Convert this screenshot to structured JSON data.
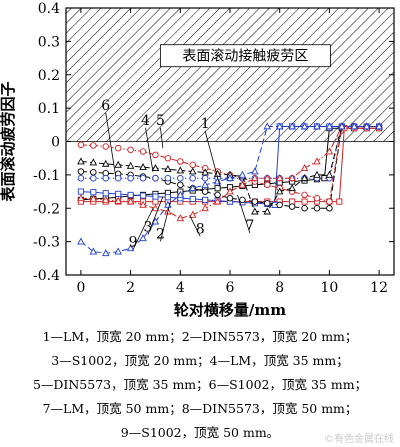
{
  "chart_data": {
    "type": "line",
    "xlabel": "轮对横移量/mm",
    "ylabel": "表面滚动疲劳因子",
    "xlim": [
      -0.6,
      12.6
    ],
    "ylim": [
      -0.4,
      0.4
    ],
    "xticks": [
      "0",
      "2",
      "4",
      "6",
      "8",
      "10",
      "12"
    ],
    "yticks": [
      "-0.4",
      "-0.3",
      "-0.2",
      "-0.1",
      "0",
      "0.1",
      "0.2",
      "0.3",
      "0.4"
    ],
    "region_label": "表面滚动接触疲劳区",
    "region_range": [
      0,
      0.4
    ],
    "series": [
      {
        "name": "1",
        "color": "#000000",
        "marker": "square",
        "dash": "solid",
        "x": [
          0,
          0.5,
          1,
          1.5,
          2,
          2.5,
          3,
          3.5,
          4,
          4.5,
          5,
          5.5,
          6,
          6.5,
          7,
          7.5,
          8,
          8.5,
          9,
          9.5,
          9.8,
          10.0,
          10.5,
          11,
          11.5,
          12
        ],
        "y": [
          -0.175,
          -0.172,
          -0.17,
          -0.167,
          -0.163,
          -0.16,
          -0.157,
          -0.154,
          -0.15,
          -0.147,
          -0.143,
          -0.14,
          -0.137,
          -0.133,
          -0.13,
          -0.127,
          -0.123,
          -0.12,
          -0.117,
          -0.113,
          -0.11,
          0.04,
          0.04,
          0.04,
          0.04,
          0.04
        ]
      },
      {
        "name": "2",
        "color": "#d02020",
        "marker": "square",
        "dash": "solid",
        "x": [
          0,
          0.5,
          1,
          1.5,
          2,
          2.5,
          3,
          3.5,
          4,
          4.5,
          5,
          5.5,
          6,
          6.5,
          7,
          7.5,
          8,
          8.5,
          9,
          9.5,
          10,
          10.4,
          10.6,
          11,
          11.5,
          12
        ],
        "y": [
          -0.18,
          -0.18,
          -0.18,
          -0.18,
          -0.18,
          -0.18,
          -0.18,
          -0.18,
          -0.18,
          -0.18,
          -0.18,
          -0.18,
          -0.18,
          -0.18,
          -0.18,
          -0.18,
          -0.18,
          -0.18,
          -0.18,
          -0.18,
          -0.18,
          -0.18,
          0.04,
          0.04,
          0.04,
          0.04
        ]
      },
      {
        "name": "3",
        "color": "#1f3fd0",
        "marker": "square",
        "dash": "solid",
        "x": [
          0,
          0.5,
          1,
          1.5,
          2,
          2.5,
          3,
          3.5,
          4,
          4.5,
          5,
          5.5,
          6,
          6.5,
          7,
          7.5,
          7.8,
          8,
          8.5,
          9,
          9.5,
          10,
          10.5,
          11,
          11.5,
          12
        ],
        "y": [
          -0.15,
          -0.152,
          -0.155,
          -0.157,
          -0.16,
          -0.162,
          -0.165,
          -0.167,
          -0.17,
          -0.172,
          -0.175,
          -0.177,
          -0.18,
          -0.182,
          -0.185,
          -0.187,
          -0.19,
          0.045,
          0.045,
          0.045,
          0.045,
          0.045,
          0.045,
          0.045,
          0.045,
          0.045
        ]
      },
      {
        "name": "4",
        "color": "#000000",
        "marker": "circle",
        "dash": "dash",
        "x": [
          0,
          0.5,
          1,
          1.5,
          2,
          2.5,
          3,
          3.5,
          4,
          4.5,
          5,
          5.5,
          6,
          6.5,
          7,
          7.5,
          8,
          8.5,
          9,
          9.5,
          10,
          10.5,
          11,
          11.5,
          12
        ],
        "y": [
          -0.09,
          -0.092,
          -0.095,
          -0.097,
          -0.1,
          -0.105,
          -0.11,
          -0.12,
          -0.13,
          -0.14,
          -0.15,
          -0.16,
          -0.17,
          -0.175,
          -0.18,
          -0.185,
          -0.19,
          -0.195,
          -0.2,
          -0.2,
          -0.2,
          0.045,
          0.045,
          0.045,
          0.045
        ]
      },
      {
        "name": "5",
        "color": "#d02020",
        "marker": "circle",
        "dash": "dashdot",
        "x": [
          0,
          0.5,
          1,
          1.5,
          2,
          2.5,
          3,
          3.5,
          4,
          4.5,
          5,
          5.5,
          6,
          6.5,
          7,
          7.5,
          8,
          8.5,
          9,
          9.5,
          10,
          10.5,
          11,
          11.5,
          12
        ],
        "y": [
          -0.01,
          -0.012,
          -0.015,
          -0.02,
          -0.025,
          -0.03,
          -0.04,
          -0.05,
          -0.06,
          -0.07,
          -0.08,
          -0.09,
          -0.1,
          -0.11,
          -0.12,
          -0.13,
          -0.14,
          -0.15,
          -0.16,
          -0.17,
          -0.18,
          0.045,
          0.045,
          0.045,
          0.045
        ]
      },
      {
        "name": "6",
        "color": "#1f3fd0",
        "marker": "circle",
        "dash": "dot",
        "x": [
          0,
          0.5,
          1,
          1.5,
          2,
          2.5,
          3,
          3.5,
          4,
          4.5,
          5,
          5.5,
          6,
          6.5,
          7,
          7.5,
          8,
          8.5,
          9,
          9.5,
          10,
          10.5,
          11,
          11.5,
          12
        ],
        "y": [
          -0.11,
          -0.11,
          -0.11,
          -0.11,
          -0.11,
          -0.11,
          -0.11,
          -0.11,
          -0.11,
          -0.11,
          -0.11,
          -0.11,
          -0.11,
          -0.11,
          -0.11,
          -0.11,
          -0.11,
          -0.11,
          -0.11,
          -0.11,
          -0.11,
          0.045,
          0.045,
          0.045,
          0.045
        ]
      },
      {
        "name": "7",
        "color": "#000000",
        "marker": "triangle",
        "dash": "dash",
        "x": [
          0,
          0.5,
          1,
          1.5,
          2,
          2.5,
          3,
          3.5,
          4,
          4.5,
          5,
          5.5,
          6,
          6.5,
          7,
          7.5,
          8,
          8.5,
          9,
          9.5,
          10,
          10.5,
          11,
          11.5,
          12
        ],
        "y": [
          -0.06,
          -0.063,
          -0.067,
          -0.07,
          -0.073,
          -0.077,
          -0.08,
          -0.083,
          -0.087,
          -0.09,
          -0.093,
          -0.097,
          -0.1,
          -0.105,
          -0.21,
          -0.21,
          -0.15,
          -0.14,
          -0.11,
          -0.1,
          -0.1,
          0.045,
          0.045,
          0.045,
          0.045
        ]
      },
      {
        "name": "8",
        "color": "#d02020",
        "marker": "triangle",
        "dash": "dashdot",
        "x": [
          0,
          0.5,
          1,
          1.5,
          2,
          2.5,
          3,
          3.5,
          4,
          4.5,
          5,
          5.5,
          6,
          6.5,
          7,
          7.5,
          8,
          8.5,
          9,
          9.5,
          10,
          10.5,
          11,
          11.5,
          12
        ],
        "y": [
          -0.17,
          -0.172,
          -0.175,
          -0.178,
          -0.18,
          -0.19,
          -0.2,
          -0.21,
          -0.23,
          -0.22,
          -0.2,
          -0.18,
          -0.15,
          -0.13,
          -0.11,
          -0.11,
          -0.11,
          -0.11,
          -0.08,
          -0.06,
          -0.03,
          0.045,
          0.045,
          0.045,
          0.045
        ]
      },
      {
        "name": "9",
        "color": "#1f3fd0",
        "marker": "triangle",
        "dash": "dash",
        "x": [
          0,
          0.5,
          1,
          1.5,
          2,
          2.5,
          3,
          3.5,
          4,
          4.5,
          5,
          5.5,
          6,
          6.5,
          7,
          7.5,
          8,
          8.5,
          9,
          9.5,
          10,
          10.5,
          11,
          11.5,
          12
        ],
        "y": [
          -0.3,
          -0.33,
          -0.335,
          -0.33,
          -0.32,
          -0.29,
          -0.24,
          -0.19,
          -0.16,
          -0.14,
          -0.13,
          -0.12,
          -0.11,
          -0.1,
          -0.09,
          0.045,
          0.045,
          0.045,
          0.045,
          0.045,
          0.045,
          0.045,
          0.045,
          0.045,
          0.045
        ]
      }
    ],
    "curve_labels": [
      {
        "text": "1",
        "x": 5.0,
        "y": 0.04,
        "px": 5.6,
        "py": -0.135,
        "color": "#000000"
      },
      {
        "text": "2",
        "x": 3.2,
        "y": -0.29,
        "px": 3.6,
        "py": -0.18,
        "color": "#000000"
      },
      {
        "text": "3",
        "x": 2.7,
        "y": -0.27,
        "px": 3.3,
        "py": -0.165,
        "color": "#000000"
      },
      {
        "text": "4",
        "x": 2.6,
        "y": 0.05,
        "px": 2.9,
        "py": -0.09,
        "color": "#000000"
      },
      {
        "text": "5",
        "x": 3.2,
        "y": 0.05,
        "px": 3.3,
        "py": -0.02,
        "color": "#000000"
      },
      {
        "text": "6",
        "x": 1.0,
        "y": 0.095,
        "px": 1.4,
        "py": -0.105,
        "color": "#000000"
      },
      {
        "text": "7",
        "x": 6.8,
        "y": -0.265,
        "px": 6.3,
        "py": -0.16,
        "color": "#000000"
      },
      {
        "text": "8",
        "x": 4.8,
        "y": -0.275,
        "px": 4.4,
        "py": -0.225,
        "color": "#000000"
      },
      {
        "text": "9",
        "x": 2.1,
        "y": -0.315,
        "px": 2.9,
        "py": -0.2,
        "color": "#000000"
      }
    ]
  },
  "captions": [
    "1—LM，顶宽 20 mm；2—DIN5573，顶宽 20 mm；",
    "3—S1002，顶宽 20 mm；4—LM，顶宽 35 mm；",
    "5—DIN5573，顶宽 35 mm；6—S1002，顶宽 35 mm；",
    "7—LM，顶宽 50 mm；8—DIN5573，顶宽 50 mm；",
    "9—S1002，顶宽 50 mm。"
  ],
  "watermark": "©有色金属在线"
}
